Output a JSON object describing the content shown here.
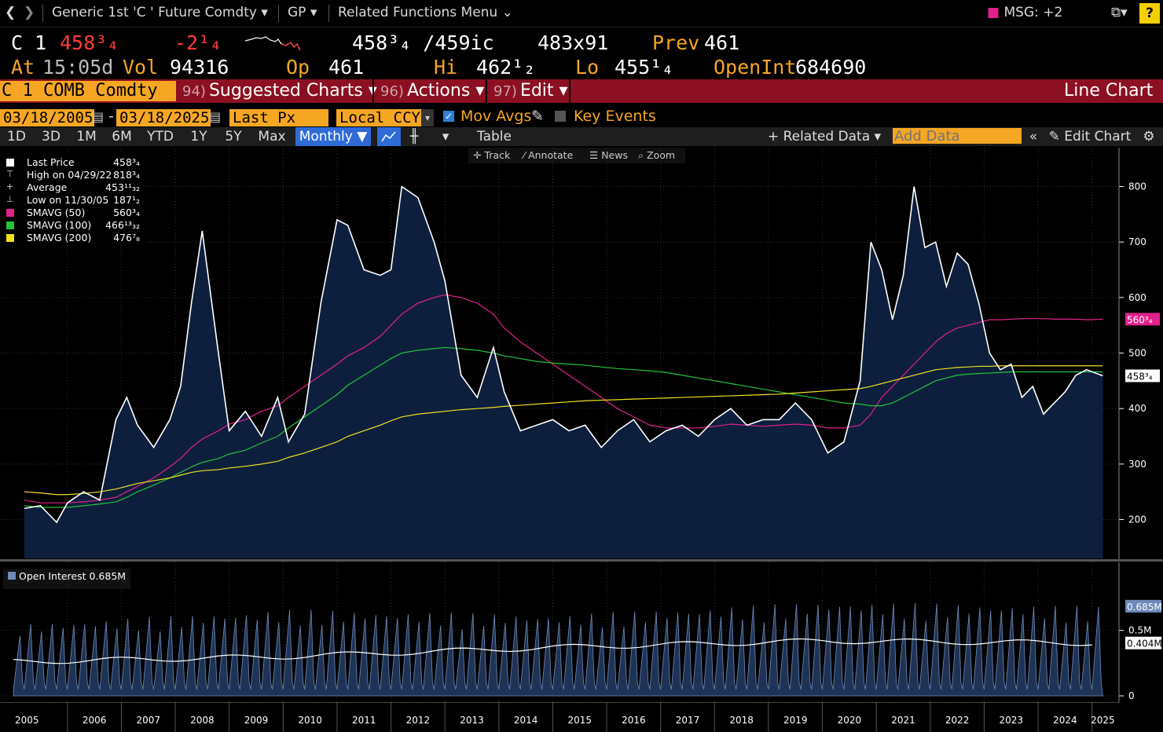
{
  "topbar": {
    "back_icon": "chevron-left-icon",
    "forward_icon": "chevron-right-icon",
    "security_menu": "Generic 1st 'C ' Future Comdty",
    "function": "GP",
    "related_functions": "Related Functions Menu",
    "msg": "MSG: +2",
    "help": "?"
  },
  "quote": {
    "ticker": "C 1",
    "last": "458³₄",
    "change": "-2¹₄",
    "bid_ask": "458³₄ /459ic",
    "size": "483x91",
    "prev_label": "Prev",
    "prev": "461",
    "at_label": "At",
    "time": "15:05d",
    "vol_label": "Vol",
    "vol": "94316",
    "op_label": "Op",
    "op": "461",
    "hi_label": "Hi",
    "hi": "462¹₂",
    "lo_label": "Lo",
    "lo": "455¹₄",
    "oi_label": "OpenInt",
    "oi": "684690"
  },
  "redbar": {
    "security": "C 1 COMB Comdty",
    "suggested_num": "94)",
    "suggested": "Suggested Charts",
    "actions_num": "96)",
    "actions": "Actions",
    "edit_num": "97)",
    "edit": "Edit",
    "chart_type": "Line Chart"
  },
  "options": {
    "start_date": "03/18/2005",
    "end_date": "03/18/2025",
    "field": "Last Px",
    "currency": "Local CCY",
    "mov_avgs": "Mov Avgs",
    "key_events": "Key Events"
  },
  "toolbar": {
    "ranges": [
      "1D",
      "3D",
      "1M",
      "6M",
      "YTD",
      "1Y",
      "5Y",
      "Max"
    ],
    "period": "Monthly",
    "table": "Table",
    "related_data": "Related Data",
    "add_data_placeholder": "Add Data",
    "edit_chart": "Edit Chart"
  },
  "subtools": [
    "Track",
    "Annotate",
    "News",
    "Zoom"
  ],
  "legend": {
    "last_price_label": "Last Price",
    "last_price": "458³₄",
    "high_label": "High on 04/29/22",
    "high": "818³₄",
    "avg_label": "Average",
    "avg": "453¹¹₃₂",
    "low_label": "Low on 11/30/05",
    "low": "187¹₂",
    "sma50_label": "SMAVG (50)",
    "sma50": "560³₄",
    "sma100_label": "SMAVG (100)",
    "sma100": "466¹³₃₂",
    "sma200_label": "SMAVG (200)",
    "sma200": "476⁷₈"
  },
  "oi_legend": "Open Interest 0.685M",
  "colors": {
    "price": "#ffffff",
    "fill": "#0d1f3d",
    "sma50": "#e0218a",
    "sma100": "#22c33b",
    "sma200": "#f0e020",
    "oi": "#6f89b8",
    "orange": "#f5a623",
    "redbar": "#8c1022"
  },
  "chart_data": [
    {
      "type": "line",
      "title": "",
      "ylim": [
        130,
        870
      ],
      "yticks": [
        200,
        300,
        400,
        500,
        600,
        700,
        800
      ],
      "right_labels": {
        "sma50": "560³₄",
        "last": "458³₄"
      },
      "x": [
        2005.2,
        2005.5,
        2005.8,
        2006.0,
        2006.3,
        2006.6,
        2006.9,
        2007.1,
        2007.3,
        2007.6,
        2007.9,
        2008.1,
        2008.3,
        2008.5,
        2008.8,
        2009.0,
        2009.3,
        2009.6,
        2009.9,
        2010.1,
        2010.4,
        2010.7,
        2011.0,
        2011.2,
        2011.5,
        2011.8,
        2012.0,
        2012.2,
        2012.5,
        2012.8,
        2013.0,
        2013.3,
        2013.6,
        2013.9,
        2014.1,
        2014.4,
        2014.7,
        2015.0,
        2015.3,
        2015.6,
        2015.9,
        2016.2,
        2016.5,
        2016.8,
        2017.1,
        2017.4,
        2017.7,
        2018.0,
        2018.3,
        2018.6,
        2018.9,
        2019.2,
        2019.5,
        2019.8,
        2020.1,
        2020.4,
        2020.7,
        2020.9,
        2021.1,
        2021.3,
        2021.5,
        2021.7,
        2021.9,
        2022.1,
        2022.3,
        2022.5,
        2022.7,
        2022.9,
        2023.1,
        2023.3,
        2023.5,
        2023.7,
        2023.9,
        2024.1,
        2024.3,
        2024.5,
        2024.7,
        2024.9,
        2025.2
      ],
      "series": [
        {
          "name": "Last Price",
          "values": [
            220,
            225,
            195,
            230,
            250,
            235,
            380,
            420,
            370,
            330,
            380,
            440,
            590,
            720,
            500,
            360,
            395,
            350,
            420,
            340,
            390,
            590,
            740,
            730,
            650,
            640,
            650,
            800,
            780,
            700,
            630,
            460,
            420,
            510,
            430,
            360,
            370,
            380,
            360,
            370,
            330,
            360,
            380,
            340,
            360,
            370,
            350,
            380,
            400,
            370,
            380,
            380,
            410,
            380,
            320,
            340,
            450,
            700,
            650,
            560,
            640,
            800,
            690,
            700,
            620,
            680,
            660,
            590,
            500,
            470,
            480,
            420,
            440,
            390,
            410,
            430,
            460,
            470,
            459
          ]
        },
        {
          "name": "SMAVG (50)",
          "values": [
            235,
            230,
            230,
            230,
            232,
            235,
            240,
            250,
            260,
            275,
            295,
            310,
            330,
            345,
            360,
            372,
            380,
            395,
            405,
            420,
            440,
            460,
            480,
            495,
            510,
            530,
            550,
            570,
            590,
            600,
            605,
            600,
            590,
            570,
            545,
            520,
            500,
            480,
            460,
            440,
            420,
            400,
            385,
            370,
            365,
            365,
            365,
            368,
            372,
            370,
            368,
            370,
            372,
            370,
            365,
            365,
            370,
            390,
            420,
            440,
            460,
            480,
            500,
            520,
            535,
            545,
            550,
            555,
            560,
            560,
            561,
            562,
            562,
            562,
            561,
            561,
            561,
            560,
            561
          ]
        },
        {
          "name": "SMAVG (100)",
          "values": [
            225,
            222,
            222,
            222,
            225,
            228,
            232,
            240,
            250,
            262,
            275,
            285,
            295,
            303,
            310,
            318,
            325,
            338,
            350,
            365,
            385,
            405,
            425,
            442,
            460,
            478,
            490,
            500,
            505,
            508,
            510,
            508,
            505,
            500,
            495,
            490,
            485,
            482,
            480,
            478,
            475,
            472,
            470,
            468,
            465,
            460,
            455,
            450,
            445,
            440,
            435,
            430,
            425,
            420,
            415,
            410,
            408,
            405,
            405,
            410,
            420,
            430,
            440,
            450,
            455,
            460,
            462,
            463,
            464,
            465,
            466,
            466,
            466,
            466,
            466,
            466,
            466,
            466,
            466
          ]
        },
        {
          "name": "SMAVG (200)",
          "values": [
            250,
            248,
            245,
            245,
            247,
            250,
            255,
            260,
            265,
            270,
            275,
            280,
            285,
            288,
            290,
            293,
            296,
            300,
            305,
            312,
            320,
            330,
            340,
            350,
            360,
            370,
            378,
            385,
            390,
            393,
            395,
            398,
            400,
            402,
            404,
            406,
            408,
            410,
            412,
            414,
            415,
            416,
            417,
            418,
            419,
            420,
            421,
            422,
            423,
            424,
            425,
            426,
            428,
            430,
            432,
            434,
            436,
            440,
            445,
            450,
            455,
            460,
            465,
            470,
            472,
            474,
            475,
            476,
            476,
            477,
            477,
            477,
            477,
            477,
            477,
            477,
            477,
            477,
            477
          ]
        }
      ]
    },
    {
      "type": "area",
      "title": "",
      "ylim": [
        0,
        0.9
      ],
      "yticks": [
        0,
        0.5
      ],
      "ytick_labels": [
        "0",
        "0.5M"
      ],
      "right_labels": {
        "last": "0.685M",
        "avg": "0.404M"
      },
      "x": [
        2005,
        2010,
        2015,
        2020,
        2025
      ],
      "series": [
        {
          "name": "Open Interest",
          "values": [
            0.55,
            0.66,
            0.62,
            0.72,
            0.685
          ],
          "note_min": 0.0
        },
        {
          "name": "Avg",
          "values": [
            0.26,
            0.3,
            0.37,
            0.42,
            0.404
          ]
        }
      ]
    }
  ],
  "xaxis": [
    "2005",
    "2006",
    "2007",
    "2008",
    "2009",
    "2010",
    "2011",
    "2012",
    "2013",
    "2014",
    "2015",
    "2016",
    "2017",
    "2018",
    "2019",
    "2020",
    "2021",
    "2022",
    "2023",
    "2024",
    "2025"
  ]
}
